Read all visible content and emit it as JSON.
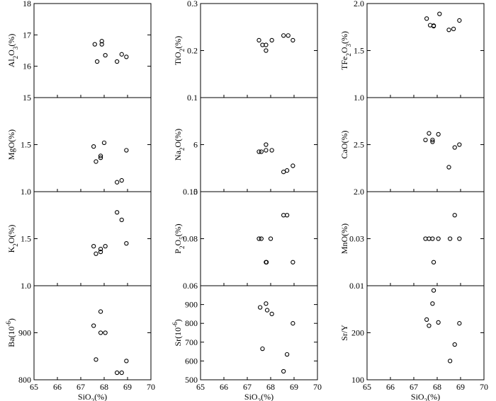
{
  "chart_data": [
    {
      "type": "scatter",
      "ylabel": "Al2O3(%)",
      "ylim": [
        15,
        18
      ],
      "yticks": [
        15,
        16,
        17,
        18
      ],
      "xlim": [
        65,
        70
      ],
      "points": [
        [
          67.6,
          16.7
        ],
        [
          67.7,
          16.15
        ],
        [
          67.9,
          16.8
        ],
        [
          67.9,
          16.7
        ],
        [
          68.05,
          16.35
        ],
        [
          68.55,
          16.15
        ],
        [
          68.75,
          16.38
        ],
        [
          68.95,
          16.3
        ]
      ]
    },
    {
      "type": "scatter",
      "ylabel": "TiO2(%)",
      "ylim": [
        0.1,
        0.3
      ],
      "yticks": [
        0.1,
        0.2,
        0.3
      ],
      "xlim": [
        65,
        70
      ],
      "points": [
        [
          67.5,
          0.222
        ],
        [
          67.65,
          0.212
        ],
        [
          67.8,
          0.212
        ],
        [
          67.8,
          0.2
        ],
        [
          68.05,
          0.222
        ],
        [
          68.55,
          0.232
        ],
        [
          68.75,
          0.232
        ],
        [
          68.95,
          0.222
        ]
      ]
    },
    {
      "type": "scatter",
      "ylabel": "TFe2O3(%)",
      "ylim": [
        1.0,
        2.0
      ],
      "yticks": [
        1.0,
        1.5,
        2.0
      ],
      "xlim": [
        65,
        70
      ],
      "points": [
        [
          67.55,
          1.84
        ],
        [
          67.7,
          1.77
        ],
        [
          67.85,
          1.76
        ],
        [
          67.85,
          1.765
        ],
        [
          68.1,
          1.89
        ],
        [
          68.5,
          1.72
        ],
        [
          68.7,
          1.73
        ],
        [
          68.95,
          1.82
        ]
      ]
    },
    {
      "type": "scatter",
      "ylabel": "MgO(%)",
      "ylim": [
        1.0,
        2.0
      ],
      "yticks": [
        1.0,
        1.5
      ],
      "xlim": [
        65,
        70
      ],
      "points": [
        [
          67.55,
          1.48
        ],
        [
          67.65,
          1.32
        ],
        [
          67.85,
          1.38
        ],
        [
          67.85,
          1.36
        ],
        [
          68.0,
          1.52
        ],
        [
          68.55,
          1.1
        ],
        [
          68.75,
          1.12
        ],
        [
          68.95,
          1.44
        ]
      ]
    },
    {
      "type": "scatter",
      "ylabel": "Na2O(%)",
      "ylim": [
        5,
        7
      ],
      "yticks": [
        5,
        6
      ],
      "xlim": [
        65,
        70
      ],
      "points": [
        [
          67.5,
          5.85
        ],
        [
          67.6,
          5.85
        ],
        [
          67.8,
          6.0
        ],
        [
          67.8,
          5.88
        ],
        [
          68.05,
          5.88
        ],
        [
          68.55,
          5.42
        ],
        [
          68.7,
          5.45
        ],
        [
          68.95,
          5.55
        ]
      ]
    },
    {
      "type": "scatter",
      "ylabel": "CaO(%)",
      "ylim": [
        2.0,
        3.0
      ],
      "yticks": [
        2.0,
        2.5
      ],
      "xlim": [
        65,
        70
      ],
      "points": [
        [
          67.5,
          2.55
        ],
        [
          67.65,
          2.62
        ],
        [
          67.8,
          2.55
        ],
        [
          67.8,
          2.53
        ],
        [
          68.05,
          2.61
        ],
        [
          68.5,
          2.26
        ],
        [
          68.75,
          2.47
        ],
        [
          68.95,
          2.5
        ]
      ]
    },
    {
      "type": "scatter",
      "ylabel": "K2O(%)",
      "ylim": [
        1.0,
        2.0
      ],
      "yticks": [
        1.0,
        1.5
      ],
      "xlim": [
        65,
        70
      ],
      "points": [
        [
          67.55,
          1.42
        ],
        [
          67.65,
          1.34
        ],
        [
          67.85,
          1.36
        ],
        [
          67.85,
          1.39
        ],
        [
          68.05,
          1.42
        ],
        [
          68.55,
          1.78
        ],
        [
          68.75,
          1.7
        ],
        [
          68.95,
          1.45
        ]
      ]
    },
    {
      "type": "scatter",
      "ylabel": "P2O5(%)",
      "ylim": [
        0.06,
        0.1
      ],
      "yticks": [
        0.06,
        0.08,
        0.1
      ],
      "xlim": [
        65,
        70
      ],
      "points": [
        [
          67.5,
          0.08
        ],
        [
          67.6,
          0.08
        ],
        [
          67.8,
          0.07
        ],
        [
          67.82,
          0.07
        ],
        [
          68.0,
          0.08
        ],
        [
          68.55,
          0.09
        ],
        [
          68.7,
          0.09
        ],
        [
          68.95,
          0.07
        ]
      ]
    },
    {
      "type": "scatter",
      "ylabel": "MnO(%)",
      "ylim": [
        0.01,
        0.05
      ],
      "yticks": [
        0.01,
        0.03
      ],
      "xlim": [
        65,
        70
      ],
      "points": [
        [
          67.5,
          0.03
        ],
        [
          67.65,
          0.03
        ],
        [
          67.8,
          0.03
        ],
        [
          67.85,
          0.02
        ],
        [
          68.05,
          0.03
        ],
        [
          68.55,
          0.03
        ],
        [
          68.75,
          0.04
        ],
        [
          68.95,
          0.03
        ]
      ]
    },
    {
      "type": "scatter",
      "ylabel": "Ba(10-6)",
      "ylim": [
        800,
        1000
      ],
      "yticks": [
        800,
        900
      ],
      "xlim": [
        65,
        70
      ],
      "xticks": [
        65,
        66,
        67,
        68,
        69,
        70
      ],
      "xlabel": "SiO2(%)",
      "points": [
        [
          67.55,
          915
        ],
        [
          67.65,
          843
        ],
        [
          67.85,
          945
        ],
        [
          67.85,
          900
        ],
        [
          68.05,
          900
        ],
        [
          68.55,
          815
        ],
        [
          68.75,
          815
        ],
        [
          68.95,
          840
        ]
      ]
    },
    {
      "type": "scatter",
      "ylabel": "Sr(10-6)",
      "ylim": [
        500,
        1000
      ],
      "yticks": [
        500,
        600,
        700,
        800,
        900
      ],
      "xlim": [
        65,
        70
      ],
      "xticks": [
        65,
        66,
        67,
        68,
        69,
        70
      ],
      "xlabel": "SiO2(%)",
      "points": [
        [
          67.55,
          885
        ],
        [
          67.65,
          665
        ],
        [
          67.8,
          905
        ],
        [
          67.85,
          870
        ],
        [
          68.05,
          850
        ],
        [
          68.55,
          545
        ],
        [
          68.7,
          635
        ],
        [
          68.95,
          800
        ]
      ]
    },
    {
      "type": "scatter",
      "ylabel": "Sr/Y",
      "ylim": [
        100,
        300
      ],
      "yticks": [
        100,
        200
      ],
      "xlim": [
        65,
        70
      ],
      "xticks": [
        65,
        66,
        67,
        68,
        69,
        70
      ],
      "xlabel": "SiO2(%)",
      "points": [
        [
          67.55,
          228
        ],
        [
          67.65,
          215
        ],
        [
          67.8,
          262
        ],
        [
          67.85,
          290
        ],
        [
          68.05,
          222
        ],
        [
          68.55,
          140
        ],
        [
          68.75,
          175
        ],
        [
          68.95,
          220
        ]
      ]
    }
  ]
}
